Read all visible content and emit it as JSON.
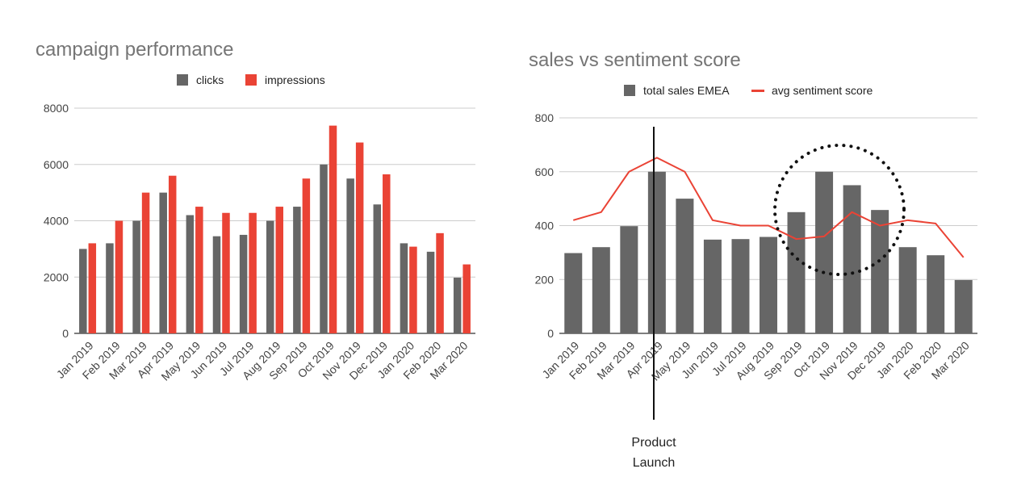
{
  "chart_data": [
    {
      "type": "bar",
      "title": "campaign performance",
      "categories": [
        "Jan 2019",
        "Feb 2019",
        "Mar 2019",
        "Apr 2019",
        "May 2019",
        "Jun 2019",
        "Jul 2019",
        "Aug 2019",
        "Sep 2019",
        "Oct 2019",
        "Nov 2019",
        "Dec 2019",
        "Jan 2020",
        "Feb 2020",
        "Mar 2020"
      ],
      "series": [
        {
          "name": "clicks",
          "color": "#666666",
          "values": [
            3000,
            3200,
            4000,
            5000,
            4200,
            3450,
            3500,
            4000,
            4500,
            6000,
            5500,
            4580,
            3200,
            2900,
            1980
          ]
        },
        {
          "name": "impressions",
          "color": "#ea4335",
          "values": [
            3200,
            4000,
            5000,
            5600,
            4500,
            4280,
            4280,
            4500,
            5500,
            7380,
            6780,
            5650,
            3080,
            3560,
            2450
          ]
        }
      ],
      "yticks": [
        "0",
        "2000",
        "4000",
        "6000",
        "8000"
      ],
      "ylim": [
        0,
        8000
      ],
      "legend_position": "top"
    },
    {
      "type": "bar+line",
      "title": "sales vs sentiment score",
      "categories": [
        "Jan 2019",
        "Feb 2019",
        "Mar 2019",
        "Apr 2019",
        "May 2019",
        "Jun 2019",
        "Jul 2019",
        "Aug 2019",
        "Sep 2019",
        "Oct 2019",
        "Nov 2019",
        "Dec 2019",
        "Jan 2020",
        "Feb 2020",
        "Mar 2020"
      ],
      "series": [
        {
          "name": "total sales EMEA",
          "kind": "bar",
          "color": "#666666",
          "values": [
            298,
            320,
            398,
            600,
            500,
            348,
            350,
            358,
            450,
            600,
            550,
            458,
            320,
            290,
            198
          ]
        },
        {
          "name": "avg sentiment score",
          "kind": "line",
          "color": "#ea4335",
          "values": [
            420,
            450,
            600,
            652,
            600,
            420,
            400,
            400,
            350,
            360,
            450,
            400,
            420,
            408,
            282
          ]
        }
      ],
      "yticks": [
        "0",
        "200",
        "400",
        "600",
        "800"
      ],
      "ylim": [
        0,
        800
      ],
      "legend_position": "top",
      "annotations": [
        {
          "kind": "vertical-line",
          "at_category": "Apr 2019",
          "label_lines": [
            "Product",
            "Launch"
          ]
        },
        {
          "kind": "dotted-circle",
          "around_categories": [
            "Sep 2019",
            "Oct 2019",
            "Nov 2019",
            "Dec 2019"
          ]
        }
      ]
    }
  ]
}
